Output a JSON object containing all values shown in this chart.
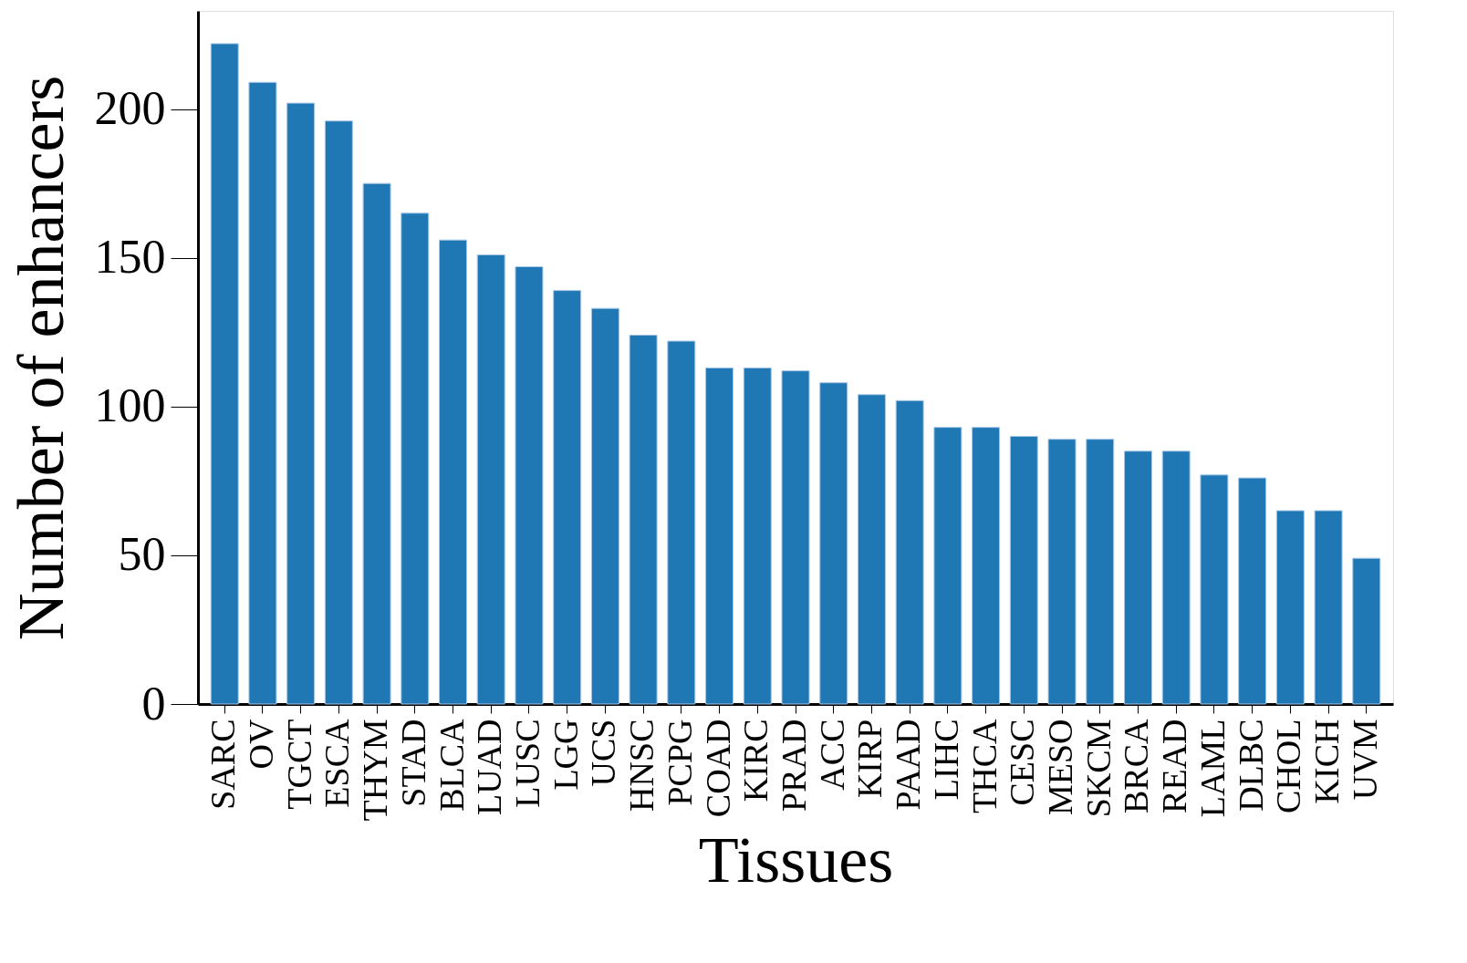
{
  "chart_data": {
    "type": "bar",
    "xlabel": "Tissues",
    "ylabel": "Number of enhancers",
    "categories": [
      "SARC",
      "OV",
      "TGCT",
      "ESCA",
      "THYM",
      "STAD",
      "BLCA",
      "LUAD",
      "LUSC",
      "LGG",
      "UCS",
      "HNSC",
      "PCPG",
      "COAD",
      "KIRC",
      "PRAD",
      "ACC",
      "KIRP",
      "PAAD",
      "LIHC",
      "THCA",
      "CESC",
      "MESO",
      "SKCM",
      "BRCA",
      "READ",
      "LAML",
      "DLBC",
      "CHOL",
      "KICH",
      "UVM"
    ],
    "values": [
      222,
      209,
      202,
      196,
      175,
      165,
      156,
      151,
      147,
      139,
      133,
      124,
      122,
      113,
      113,
      112,
      108,
      104,
      102,
      93,
      93,
      90,
      89,
      89,
      85,
      85,
      77,
      76,
      65,
      65,
      49
    ],
    "color": "#1f77b4",
    "ylim": [
      0,
      233
    ],
    "yticks": [
      0,
      50,
      100,
      150,
      200
    ],
    "grid": false
  }
}
